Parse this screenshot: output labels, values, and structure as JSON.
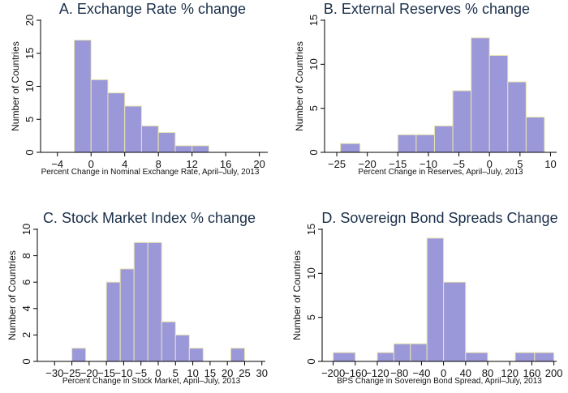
{
  "chart_data": [
    {
      "type": "bar",
      "title": "A. Exchange Rate % change",
      "xlabel": "Percent Change in Nominal Exchange Rate, April–July, 2013",
      "ylabel": "Number of Countries",
      "xlim": [
        -6,
        21
      ],
      "ylim": [
        0,
        20
      ],
      "xticks": [
        "−4",
        "0",
        "4",
        "8",
        "12",
        "16",
        "20"
      ],
      "xtick_values": [
        -4,
        0,
        4,
        8,
        12,
        16,
        20
      ],
      "yticks": [
        "0",
        "5",
        "10",
        "15",
        "20"
      ],
      "ytick_values": [
        0,
        5,
        10,
        15,
        20
      ],
      "bins": [
        [
          -2,
          0
        ],
        [
          0,
          2
        ],
        [
          2,
          4
        ],
        [
          4,
          6
        ],
        [
          6,
          8
        ],
        [
          8,
          10
        ],
        [
          10,
          12
        ],
        [
          12,
          14
        ]
      ],
      "values": [
        17,
        11,
        9,
        7,
        4,
        3,
        1,
        1
      ]
    },
    {
      "type": "bar",
      "title": "B. External Reserves % change",
      "xlabel": "Percent Change in Reserves, April–July, 2013",
      "ylabel": "Number of Countries",
      "xlim": [
        -27,
        11
      ],
      "ylim": [
        0,
        15
      ],
      "xticks": [
        "−25",
        "−20",
        "−15",
        "−10",
        "−5",
        "0",
        "5",
        "10"
      ],
      "xtick_values": [
        -25,
        -20,
        -15,
        -10,
        -5,
        0,
        5,
        10
      ],
      "yticks": [
        "0",
        "5",
        "10",
        "15"
      ],
      "ytick_values": [
        0,
        5,
        10,
        15
      ],
      "bins": [
        [
          -24.4,
          -21.2
        ],
        [
          -15,
          -12
        ],
        [
          -12,
          -9
        ],
        [
          -9,
          -6
        ],
        [
          -6,
          -3
        ],
        [
          -3,
          0
        ],
        [
          0,
          3
        ],
        [
          3,
          6
        ],
        [
          6,
          9
        ]
      ],
      "values": [
        1,
        2,
        2,
        3,
        7,
        13,
        11,
        8,
        4
      ]
    },
    {
      "type": "bar",
      "title": "C. Stock Market Index % change",
      "xlabel": "Percent Change in Stock Market, April–July, 2013",
      "ylabel": "Number of Countries",
      "xlim": [
        -35,
        31
      ],
      "ylim": [
        0,
        10
      ],
      "xticks": [
        "−30",
        "−25",
        "−20",
        "−15",
        "−10",
        "−5",
        "0",
        "5",
        "10",
        "15",
        "20",
        "25",
        "30"
      ],
      "xtick_values": [
        -30,
        -25,
        -20,
        -15,
        -10,
        -5,
        0,
        5,
        10,
        15,
        20,
        25,
        30
      ],
      "yticks": [
        "0",
        "2",
        "4",
        "6",
        "8",
        "10"
      ],
      "ytick_values": [
        0,
        2,
        4,
        6,
        8,
        10
      ],
      "bins": [
        [
          -25,
          -21
        ],
        [
          -15,
          -11
        ],
        [
          -11,
          -7
        ],
        [
          -7,
          -3
        ],
        [
          -3,
          1
        ],
        [
          1,
          5
        ],
        [
          5,
          9
        ],
        [
          9,
          13
        ],
        [
          21,
          25
        ]
      ],
      "values": [
        1,
        6,
        7,
        9,
        9,
        3,
        2,
        1,
        1
      ]
    },
    {
      "type": "bar",
      "title": "D. Sovereign Bond Spreads Change",
      "xlabel": "BPS Change in Sovereign Bond Spread, April–July, 2013",
      "ylabel": "Number of Countries",
      "xlim": [
        -220,
        205
      ],
      "ylim": [
        0,
        15
      ],
      "xticks": [
        "−200",
        "−160",
        "−120",
        "−80",
        "−40",
        "0",
        "40",
        "80",
        "120",
        "160",
        "200"
      ],
      "xtick_values": [
        -200,
        -160,
        -120,
        -80,
        -40,
        0,
        40,
        80,
        120,
        160,
        200
      ],
      "yticks": [
        "0",
        "5",
        "10",
        "15"
      ],
      "ytick_values": [
        0,
        5,
        10,
        15
      ],
      "bins": [
        [
          -200,
          -160
        ],
        [
          -120,
          -90
        ],
        [
          -90,
          -60
        ],
        [
          -60,
          -30
        ],
        [
          -30,
          0
        ],
        [
          0,
          40
        ],
        [
          40,
          80
        ],
        [
          130,
          165
        ],
        [
          165,
          200
        ]
      ],
      "values": [
        1,
        1,
        2,
        2,
        14,
        9,
        1,
        1,
        1
      ]
    }
  ]
}
